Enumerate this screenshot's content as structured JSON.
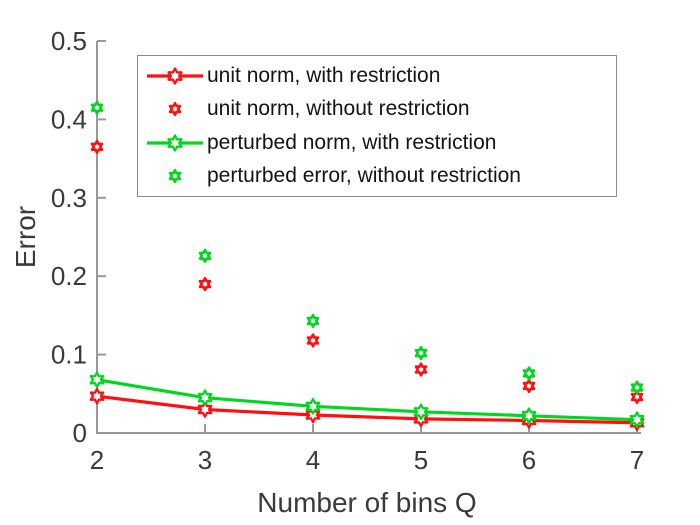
{
  "colors": {
    "red": "#ff1010",
    "green": "#00d81f",
    "axis_line": "#999999",
    "tick_text": "#3a3a3a",
    "legend_border": "#8b8b8b",
    "legend_text": "#141414",
    "background": "#ffffff"
  },
  "chart_data": {
    "type": "line",
    "title": "",
    "xlabel": "Number of bins Q",
    "ylabel": "Error",
    "x": [
      2,
      3,
      4,
      5,
      6,
      7
    ],
    "xlim": [
      2,
      7
    ],
    "ylim": [
      0,
      0.5
    ],
    "xticks": [
      2,
      3,
      4,
      5,
      6,
      7
    ],
    "xtick_labels": [
      "2",
      "3",
      "4",
      "5",
      "6",
      "7"
    ],
    "yticks": [
      0,
      0.1,
      0.2,
      0.3,
      0.4,
      0.5
    ],
    "ytick_labels": [
      "0",
      "0.1",
      "0.2",
      "0.3",
      "0.4",
      "0.5"
    ],
    "grid": false,
    "legend_position": "upper-left-inside",
    "marker": "hexagram",
    "series": [
      {
        "name": "unit norm, with restriction",
        "type": "line",
        "color_key": "red",
        "values": [
          0.047,
          0.03,
          0.023,
          0.018,
          0.016,
          0.013
        ]
      },
      {
        "name": "unit norm, without restriction",
        "type": "scatter",
        "color_key": "red",
        "values": [
          0.365,
          0.19,
          0.118,
          0.081,
          0.06,
          0.046
        ]
      },
      {
        "name": "perturbed norm, with restriction",
        "type": "line",
        "color_key": "green",
        "values": [
          0.068,
          0.045,
          0.034,
          0.027,
          0.022,
          0.017
        ]
      },
      {
        "name": "perturbed error, without restriction",
        "type": "scatter",
        "color_key": "green",
        "values": [
          0.415,
          0.226,
          0.143,
          0.102,
          0.076,
          0.058
        ]
      }
    ]
  }
}
